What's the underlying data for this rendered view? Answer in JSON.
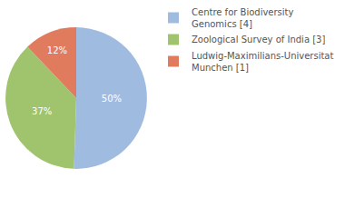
{
  "chart_data": {
    "type": "pie",
    "categories": [
      "Centre for Biodiversity Genomics [4]",
      "Zoological Survey of India [3]",
      "Ludwig-Maximilians-Universitat Munchen [1]"
    ],
    "values": [
      50,
      37,
      12
    ],
    "value_labels": [
      "50%",
      "37%",
      "12%"
    ],
    "colors": [
      "#9fbbe0",
      "#a0c46e",
      "#e07b5e"
    ],
    "data_labels": true,
    "legend": "right"
  }
}
